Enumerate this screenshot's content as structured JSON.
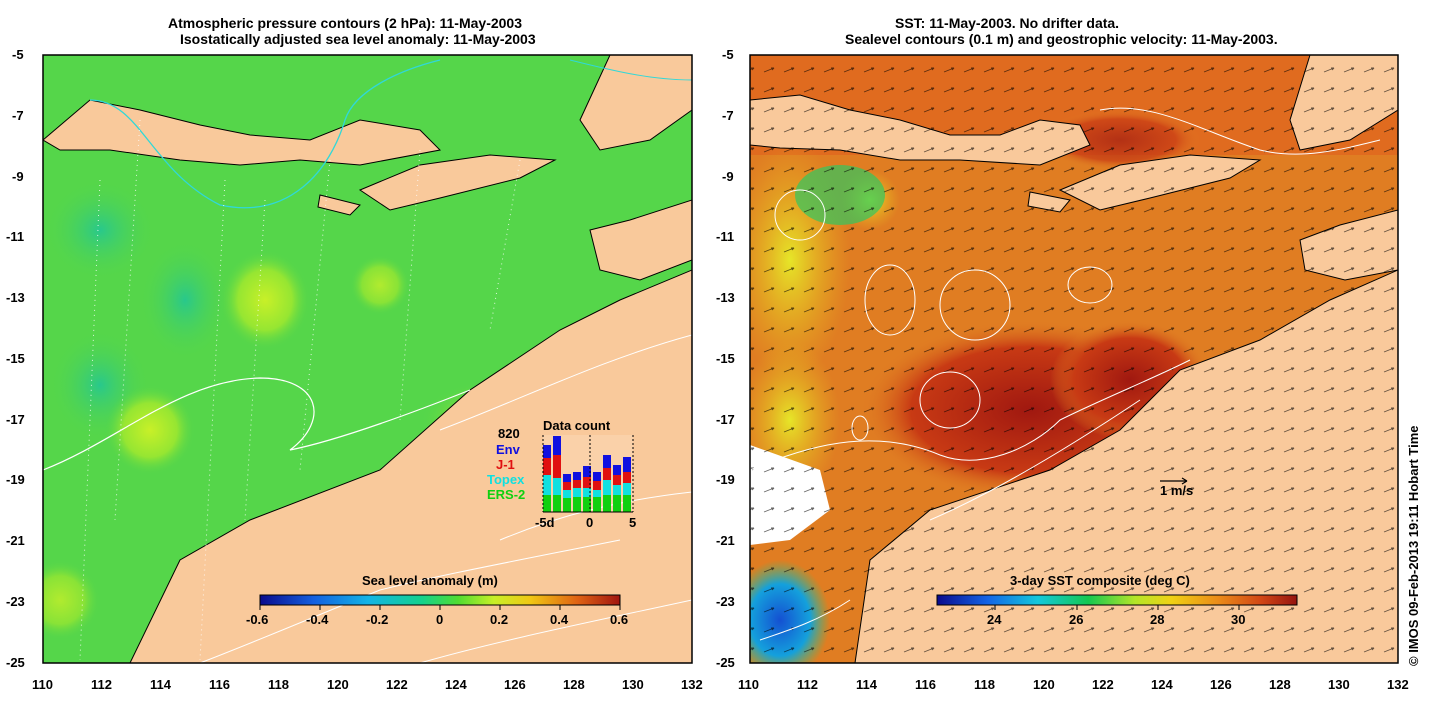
{
  "left_panel": {
    "title_line1": "Atmospheric pressure contours (2 hPa): 11-May-2003",
    "title_line2": "Isostatically adjusted sea level anomaly: 11-May-2003",
    "colorbar": {
      "label": "Sea level anomaly (m)",
      "ticks": [
        "-0.6",
        "-0.4",
        "-0.2",
        "0",
        "0.2",
        "0.4",
        "0.6"
      ],
      "min": -0.6,
      "max": 0.6
    },
    "data_count": {
      "title": "Data count",
      "total": "820",
      "legend": [
        {
          "name": "Env",
          "color": "#1010e0"
        },
        {
          "name": "J-1",
          "color": "#e01010"
        },
        {
          "name": "Topex",
          "color": "#10e0e0"
        },
        {
          "name": "ERS-2",
          "color": "#10d010"
        }
      ],
      "x_ticks": [
        "-5d",
        "0",
        "5"
      ]
    }
  },
  "right_panel": {
    "title_line1": "SST: 11-May-2003. No drifter data.",
    "title_line2": "Sealevel contours (0.1 m) and geostrophic velocity: 11-May-2003.",
    "colorbar": {
      "label": "3-day SST composite (deg C)",
      "ticks": [
        "24",
        "26",
        "28",
        "30"
      ],
      "min": 22.5,
      "max": 31.8
    },
    "velocity_key": "1 m/s"
  },
  "axes": {
    "lat_labels": [
      "-5",
      "-7",
      "-9",
      "-11",
      "-13",
      "-15",
      "-17",
      "-19",
      "-21",
      "-23",
      "-25"
    ],
    "lon_labels": [
      "110",
      "112",
      "114",
      "116",
      "118",
      "120",
      "122",
      "124",
      "126",
      "128",
      "130",
      "132"
    ],
    "lat_range": [
      -25,
      -5
    ],
    "lon_range": [
      110,
      132
    ]
  },
  "credit": "© IMOS 09-Feb-2013 19:11 Hobart Time",
  "colors": {
    "land": "#f9c99b",
    "slmap_base": "#55d64a",
    "sst_base": "#e07d22"
  }
}
